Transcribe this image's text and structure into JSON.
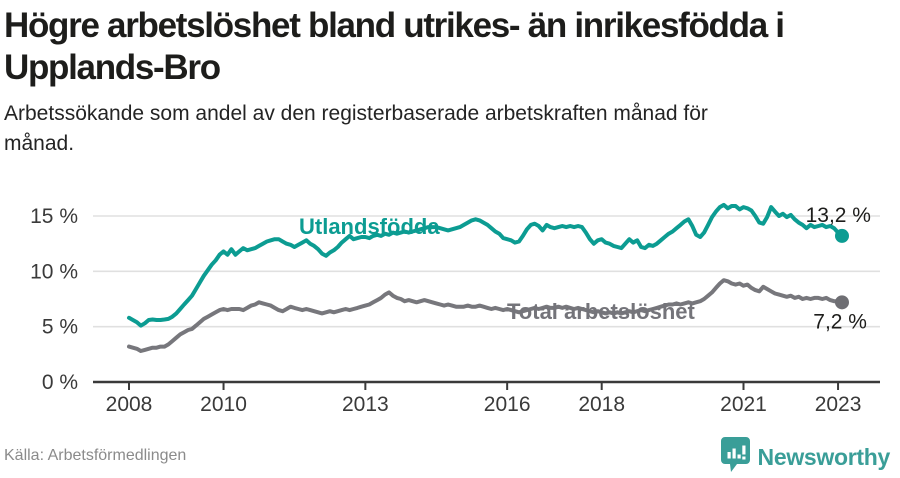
{
  "header": {
    "title_lines": [
      "Högre arbetslöshet bland utrikes- än inrikesfödda i",
      "Upplands-Bro"
    ],
    "subtitle_lines": [
      "Arbetssökande som andel av den registerbaserade arbetskraften månad för",
      "månad."
    ]
  },
  "footer": {
    "source": "Källa: Arbetsförmedlingen",
    "brand": "Newsworthy"
  },
  "colors": {
    "accent_teal": "#0c9c92",
    "line_gray": "#77777c",
    "gray_dot": "#6e6e73",
    "brand_teal": "#3a9e98",
    "title_text": "#1d1d1b",
    "axis_text": "#3a3a3a",
    "grid": "#e0e0e0",
    "value_label_text": "#1d1d1b",
    "source_text": "#8b8b8b"
  },
  "chart_data": {
    "type": "line",
    "unit": "%",
    "x_start": "2008-01",
    "x_end": "2023-02",
    "frequency": "monthly",
    "xlim": [
      2007.25,
      2023.9
    ],
    "ylim": [
      0,
      16.6
    ],
    "grid": "horizontal",
    "legend_position": "inline-labels",
    "xticks": {
      "values": [
        2008,
        2010,
        2013,
        2016,
        2018,
        2021,
        2023
      ],
      "labels": [
        "2008",
        "2010",
        "2013",
        "2016",
        "2018",
        "2021",
        "2023"
      ]
    },
    "yticks": {
      "values": [
        0,
        5,
        10,
        15
      ],
      "labels": [
        "0 %",
        "5 %",
        "10 %",
        "15 %"
      ]
    },
    "series": [
      {
        "name": "Utlandsfödda",
        "color": "#0c9c92",
        "end_label": "13,2 %",
        "end_value": 13.2,
        "values": [
          5.8,
          5.6,
          5.4,
          5.1,
          5.3,
          5.6,
          5.65,
          5.6,
          5.6,
          5.65,
          5.7,
          5.9,
          6.2,
          6.6,
          7.0,
          7.4,
          7.8,
          8.4,
          9.0,
          9.6,
          10.1,
          10.6,
          11.0,
          11.5,
          11.8,
          11.5,
          12.0,
          11.5,
          11.8,
          12.1,
          11.9,
          12.0,
          12.1,
          12.3,
          12.5,
          12.7,
          12.8,
          12.9,
          12.9,
          12.7,
          12.5,
          12.4,
          12.2,
          12.4,
          12.6,
          12.8,
          12.5,
          12.3,
          12.0,
          11.6,
          11.4,
          11.7,
          11.9,
          12.2,
          12.6,
          12.9,
          13.2,
          12.9,
          13.0,
          13.1,
          13.1,
          13.0,
          13.2,
          13.3,
          13.2,
          13.4,
          13.3,
          13.5,
          13.4,
          13.5,
          13.6,
          13.5,
          13.6,
          13.7,
          13.8,
          13.9,
          14.0,
          14.0,
          14.0,
          13.9,
          13.8,
          13.7,
          13.8,
          13.9,
          14.0,
          14.2,
          14.4,
          14.6,
          14.7,
          14.6,
          14.4,
          14.2,
          13.9,
          13.6,
          13.4,
          13.0,
          12.9,
          12.8,
          12.6,
          12.7,
          13.2,
          13.8,
          14.2,
          14.3,
          14.1,
          13.7,
          14.2,
          14.0,
          13.9,
          14.0,
          14.1,
          14.0,
          14.1,
          14.0,
          14.1,
          14.0,
          13.5,
          12.9,
          12.5,
          12.8,
          12.9,
          12.6,
          12.5,
          12.3,
          12.2,
          12.1,
          12.5,
          12.9,
          12.6,
          12.8,
          12.2,
          12.1,
          12.4,
          12.3,
          12.5,
          12.8,
          13.1,
          13.4,
          13.6,
          13.9,
          14.2,
          14.5,
          14.7,
          14.1,
          13.3,
          13.1,
          13.5,
          14.2,
          14.9,
          15.4,
          15.8,
          16.0,
          15.7,
          15.9,
          15.9,
          15.6,
          15.8,
          15.7,
          15.5,
          15.0,
          14.4,
          14.3,
          14.9,
          15.8,
          15.4,
          15.0,
          15.2,
          14.9,
          15.1,
          14.7,
          14.4,
          14.2,
          13.9,
          14.2,
          14.0,
          14.1,
          14.2,
          14.0,
          14.1,
          13.9,
          13.5,
          13.2
        ]
      },
      {
        "name": "Total arbetslöshet",
        "color": "#77777c",
        "end_label": "7,2 %",
        "end_value": 7.2,
        "values": [
          3.2,
          3.1,
          3.0,
          2.8,
          2.9,
          3.0,
          3.1,
          3.1,
          3.2,
          3.2,
          3.4,
          3.7,
          4.0,
          4.3,
          4.5,
          4.7,
          4.8,
          5.1,
          5.4,
          5.7,
          5.9,
          6.1,
          6.3,
          6.5,
          6.6,
          6.5,
          6.6,
          6.6,
          6.6,
          6.5,
          6.7,
          6.9,
          7.0,
          7.2,
          7.1,
          7.0,
          6.9,
          6.7,
          6.5,
          6.4,
          6.6,
          6.8,
          6.7,
          6.6,
          6.5,
          6.6,
          6.5,
          6.4,
          6.3,
          6.2,
          6.3,
          6.4,
          6.3,
          6.4,
          6.5,
          6.6,
          6.5,
          6.6,
          6.7,
          6.8,
          6.9,
          7.0,
          7.2,
          7.4,
          7.6,
          7.9,
          8.1,
          7.8,
          7.6,
          7.5,
          7.3,
          7.4,
          7.3,
          7.2,
          7.3,
          7.4,
          7.3,
          7.2,
          7.1,
          7.0,
          6.9,
          7.0,
          6.9,
          6.8,
          6.8,
          6.8,
          6.9,
          6.8,
          6.8,
          6.9,
          6.8,
          6.7,
          6.6,
          6.7,
          6.6,
          6.5,
          6.6,
          6.5,
          6.4,
          6.3,
          6.4,
          6.5,
          6.6,
          6.7,
          6.6,
          6.7,
          6.8,
          6.7,
          6.7,
          6.8,
          6.7,
          6.8,
          6.7,
          6.6,
          6.7,
          6.6,
          6.5,
          6.4,
          6.3,
          6.4,
          6.3,
          6.2,
          6.3,
          6.2,
          6.3,
          6.2,
          6.3,
          6.4,
          6.3,
          6.4,
          6.5,
          6.4,
          6.5,
          6.6,
          6.7,
          6.8,
          6.9,
          7.0,
          7.0,
          7.1,
          7.0,
          7.1,
          7.2,
          7.1,
          7.2,
          7.3,
          7.5,
          7.8,
          8.1,
          8.5,
          8.9,
          9.2,
          9.1,
          8.9,
          8.8,
          8.9,
          8.7,
          8.8,
          8.5,
          8.3,
          8.2,
          8.6,
          8.4,
          8.2,
          8.0,
          7.9,
          7.8,
          7.7,
          7.8,
          7.6,
          7.7,
          7.5,
          7.6,
          7.5,
          7.6,
          7.6,
          7.5,
          7.6,
          7.4,
          7.3,
          7.3,
          7.2
        ]
      }
    ]
  }
}
